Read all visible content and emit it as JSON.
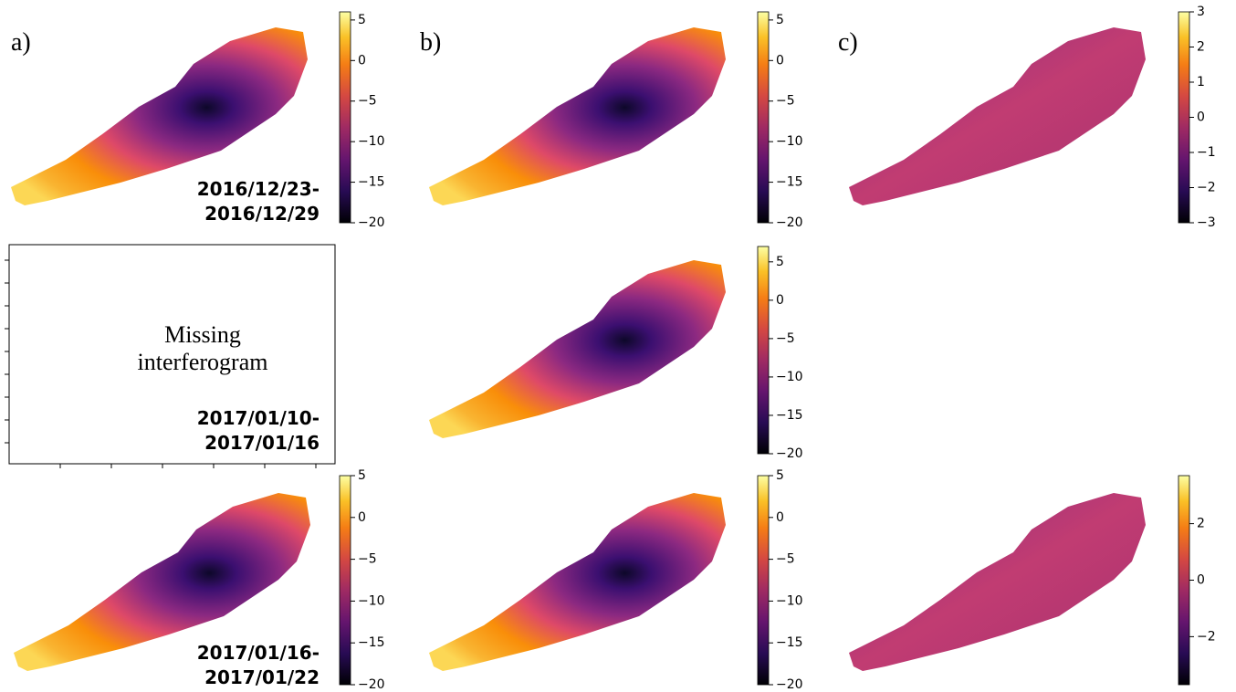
{
  "panel_labels": [
    "a)",
    "b)",
    "c)"
  ],
  "missing_text": [
    "Missing",
    "interferogram"
  ],
  "date_labels": [
    [
      "2016/12/23-",
      "2016/12/29"
    ],
    [
      "2017/01/10-",
      "2017/01/16"
    ],
    [
      "2017/01/16-",
      "2017/01/22"
    ]
  ],
  "colorbars": [
    {
      "lim": [
        -20,
        6
      ],
      "ticks": [
        5,
        0,
        {
          "value": -5,
          "label": "−5"
        },
        {
          "value": -10,
          "label": "−10"
        },
        {
          "value": -15,
          "label": "−15"
        },
        {
          "value": -20,
          "label": "−20"
        }
      ]
    },
    {
      "lim": [
        -20,
        6
      ],
      "ticks": [
        5,
        0,
        {
          "value": -5,
          "label": "−5"
        },
        {
          "value": -10,
          "label": "−10"
        },
        {
          "value": -15,
          "label": "−15"
        },
        {
          "value": -20,
          "label": "−20"
        }
      ]
    },
    {
      "lim": [
        -3,
        3
      ],
      "ticks": [
        3,
        2,
        1,
        0,
        {
          "value": -1,
          "label": "−1"
        },
        {
          "value": -2,
          "label": "−2"
        },
        {
          "value": -3,
          "label": "−3"
        }
      ]
    },
    {
      "lim": [
        -20,
        7
      ],
      "ticks": [
        5,
        0,
        {
          "value": -5,
          "label": "−5"
        },
        {
          "value": -10,
          "label": "−10"
        },
        {
          "value": -15,
          "label": "−15"
        },
        {
          "value": -20,
          "label": "−20"
        }
      ]
    },
    {
      "lim": [
        -20,
        5
      ],
      "ticks": [
        5,
        0,
        {
          "value": -5,
          "label": "−5"
        },
        {
          "value": -10,
          "label": "−10"
        },
        {
          "value": -15,
          "label": "−15"
        },
        {
          "value": -20,
          "label": "−20"
        }
      ]
    },
    {
      "lim": [
        -20,
        5
      ],
      "ticks": [
        5,
        0,
        {
          "value": -5,
          "label": "−5"
        },
        {
          "value": -10,
          "label": "−10"
        },
        {
          "value": -15,
          "label": "−15"
        },
        {
          "value": -20,
          "label": "−20"
        }
      ]
    },
    {
      "lim": [
        -3.7,
        3.7
      ],
      "ticks": [
        2,
        0,
        {
          "value": -2,
          "label": "−2"
        }
      ]
    }
  ]
}
